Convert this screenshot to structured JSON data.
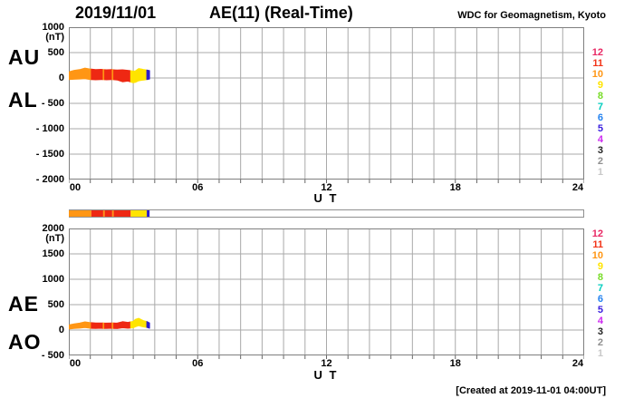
{
  "header": {
    "date": "2019/11/01",
    "title": "AE(11) (Real-Time)",
    "source": "WDC for Geomagnetism, Kyoto"
  },
  "footer": {
    "created_note": "[Created at 2019-11-01 04:00UT]"
  },
  "legend": {
    "meaning": "number of reporting stations",
    "items": [
      {
        "count": "12",
        "color": "#e82864"
      },
      {
        "count": "11",
        "color": "#f23418"
      },
      {
        "count": "10",
        "color": "#ff9614"
      },
      {
        "count": "9",
        "color": "#ffe400"
      },
      {
        "count": "8",
        "color": "#78dc28"
      },
      {
        "count": "7",
        "color": "#00cdbe"
      },
      {
        "count": "6",
        "color": "#2382f0"
      },
      {
        "count": "5",
        "color": "#3a1ede"
      },
      {
        "count": "4",
        "color": "#cd28f0"
      },
      {
        "count": "3",
        "color": "#232323"
      },
      {
        "count": "2",
        "color": "#8f8f8f"
      },
      {
        "count": "1",
        "color": "#c8c8c8"
      }
    ]
  },
  "station_segments": [
    {
      "t0": 0.0,
      "t1": 1.05,
      "stations": 10,
      "color": "#ff9614"
    },
    {
      "t0": 1.05,
      "t1": 1.6,
      "stations": 11,
      "color": "#ee2813"
    },
    {
      "t0": 1.6,
      "t1": 1.67,
      "stations": 10,
      "color": "#ff9614"
    },
    {
      "t0": 1.67,
      "t1": 2.02,
      "stations": 11,
      "color": "#ee2813"
    },
    {
      "t0": 2.02,
      "t1": 2.09,
      "stations": 10,
      "color": "#ff9614"
    },
    {
      "t0": 2.09,
      "t1": 2.88,
      "stations": 11,
      "color": "#ee2813"
    },
    {
      "t0": 2.88,
      "t1": 3.63,
      "stations": 9,
      "color": "#ffe400"
    },
    {
      "t0": 3.63,
      "t1": 3.76,
      "stations": 5,
      "color": "#2d1ecb"
    }
  ],
  "colorbar": {
    "xlim": [
      0,
      24
    ]
  },
  "chart_data": [
    {
      "type": "area",
      "panel": "AU-AL",
      "left_labels": [
        "AU",
        "AL"
      ],
      "unit_label": "(nT)",
      "ut_label": "U T",
      "xlim": [
        0,
        24
      ],
      "x_minor_step": 1,
      "x_major_ticks": [
        {
          "t": 0,
          "label": "00"
        },
        {
          "t": 6,
          "label": "06"
        },
        {
          "t": 12,
          "label": "12"
        },
        {
          "t": 18,
          "label": "18"
        },
        {
          "t": 24,
          "label": "24"
        }
      ],
      "ylim": [
        -2000,
        1000
      ],
      "y_step": 500,
      "y_tick_labels": [
        {
          "value": 1000,
          "label": "1000"
        },
        {
          "value": 500,
          "label": "500"
        },
        {
          "value": 0,
          "label": "0"
        },
        {
          "value": -500,
          "label": "- 500"
        },
        {
          "value": -1000,
          "label": "- 1000"
        },
        {
          "value": -1500,
          "label": "- 1500"
        },
        {
          "value": -2000,
          "label": "- 2000"
        }
      ],
      "trace": {
        "upper_name": "AU",
        "lower_name": "AL",
        "x": [
          0,
          0.25,
          0.5,
          0.75,
          1.0,
          1.25,
          1.5,
          1.75,
          2.0,
          2.25,
          2.5,
          2.75,
          3.0,
          3.1,
          3.25,
          3.4,
          3.5,
          3.65,
          3.76
        ],
        "upper": [
          120,
          150,
          165,
          195,
          175,
          165,
          170,
          160,
          165,
          155,
          160,
          150,
          135,
          140,
          185,
          175,
          165,
          155,
          145
        ],
        "lower": [
          -30,
          -25,
          -20,
          -15,
          -30,
          -35,
          -30,
          -35,
          -30,
          -40,
          -75,
          -60,
          -95,
          -85,
          -55,
          -45,
          -40,
          -30,
          -20
        ]
      }
    },
    {
      "type": "area",
      "panel": "AE-AO",
      "left_labels": [
        "AE",
        "AO"
      ],
      "unit_label": "(nT)",
      "ut_label": "U T",
      "xlim": [
        0,
        24
      ],
      "x_minor_step": 1,
      "x_major_ticks": [
        {
          "t": 0,
          "label": "00"
        },
        {
          "t": 6,
          "label": "06"
        },
        {
          "t": 12,
          "label": "12"
        },
        {
          "t": 18,
          "label": "18"
        },
        {
          "t": 24,
          "label": "24"
        }
      ],
      "ylim": [
        -500,
        2000
      ],
      "y_step": 500,
      "y_tick_labels": [
        {
          "value": 2000,
          "label": "2000"
        },
        {
          "value": 1500,
          "label": "1500"
        },
        {
          "value": 1000,
          "label": "1000"
        },
        {
          "value": 500,
          "label": "500"
        },
        {
          "value": 0,
          "label": "0"
        },
        {
          "value": -500,
          "label": "- 500"
        }
      ],
      "trace": {
        "upper_name": "AE",
        "lower_name": "AO",
        "x": [
          0,
          0.25,
          0.5,
          0.75,
          1.0,
          1.25,
          1.5,
          1.75,
          2.0,
          2.25,
          2.5,
          2.75,
          3.0,
          3.1,
          3.25,
          3.4,
          3.5,
          3.65,
          3.76
        ],
        "upper": [
          100,
          120,
          135,
          160,
          145,
          140,
          140,
          135,
          140,
          135,
          165,
          150,
          170,
          210,
          230,
          200,
          180,
          165,
          140
        ],
        "lower": [
          20,
          30,
          38,
          50,
          35,
          30,
          35,
          30,
          35,
          28,
          45,
          35,
          45,
          65,
          85,
          70,
          60,
          50,
          35
        ]
      }
    }
  ]
}
